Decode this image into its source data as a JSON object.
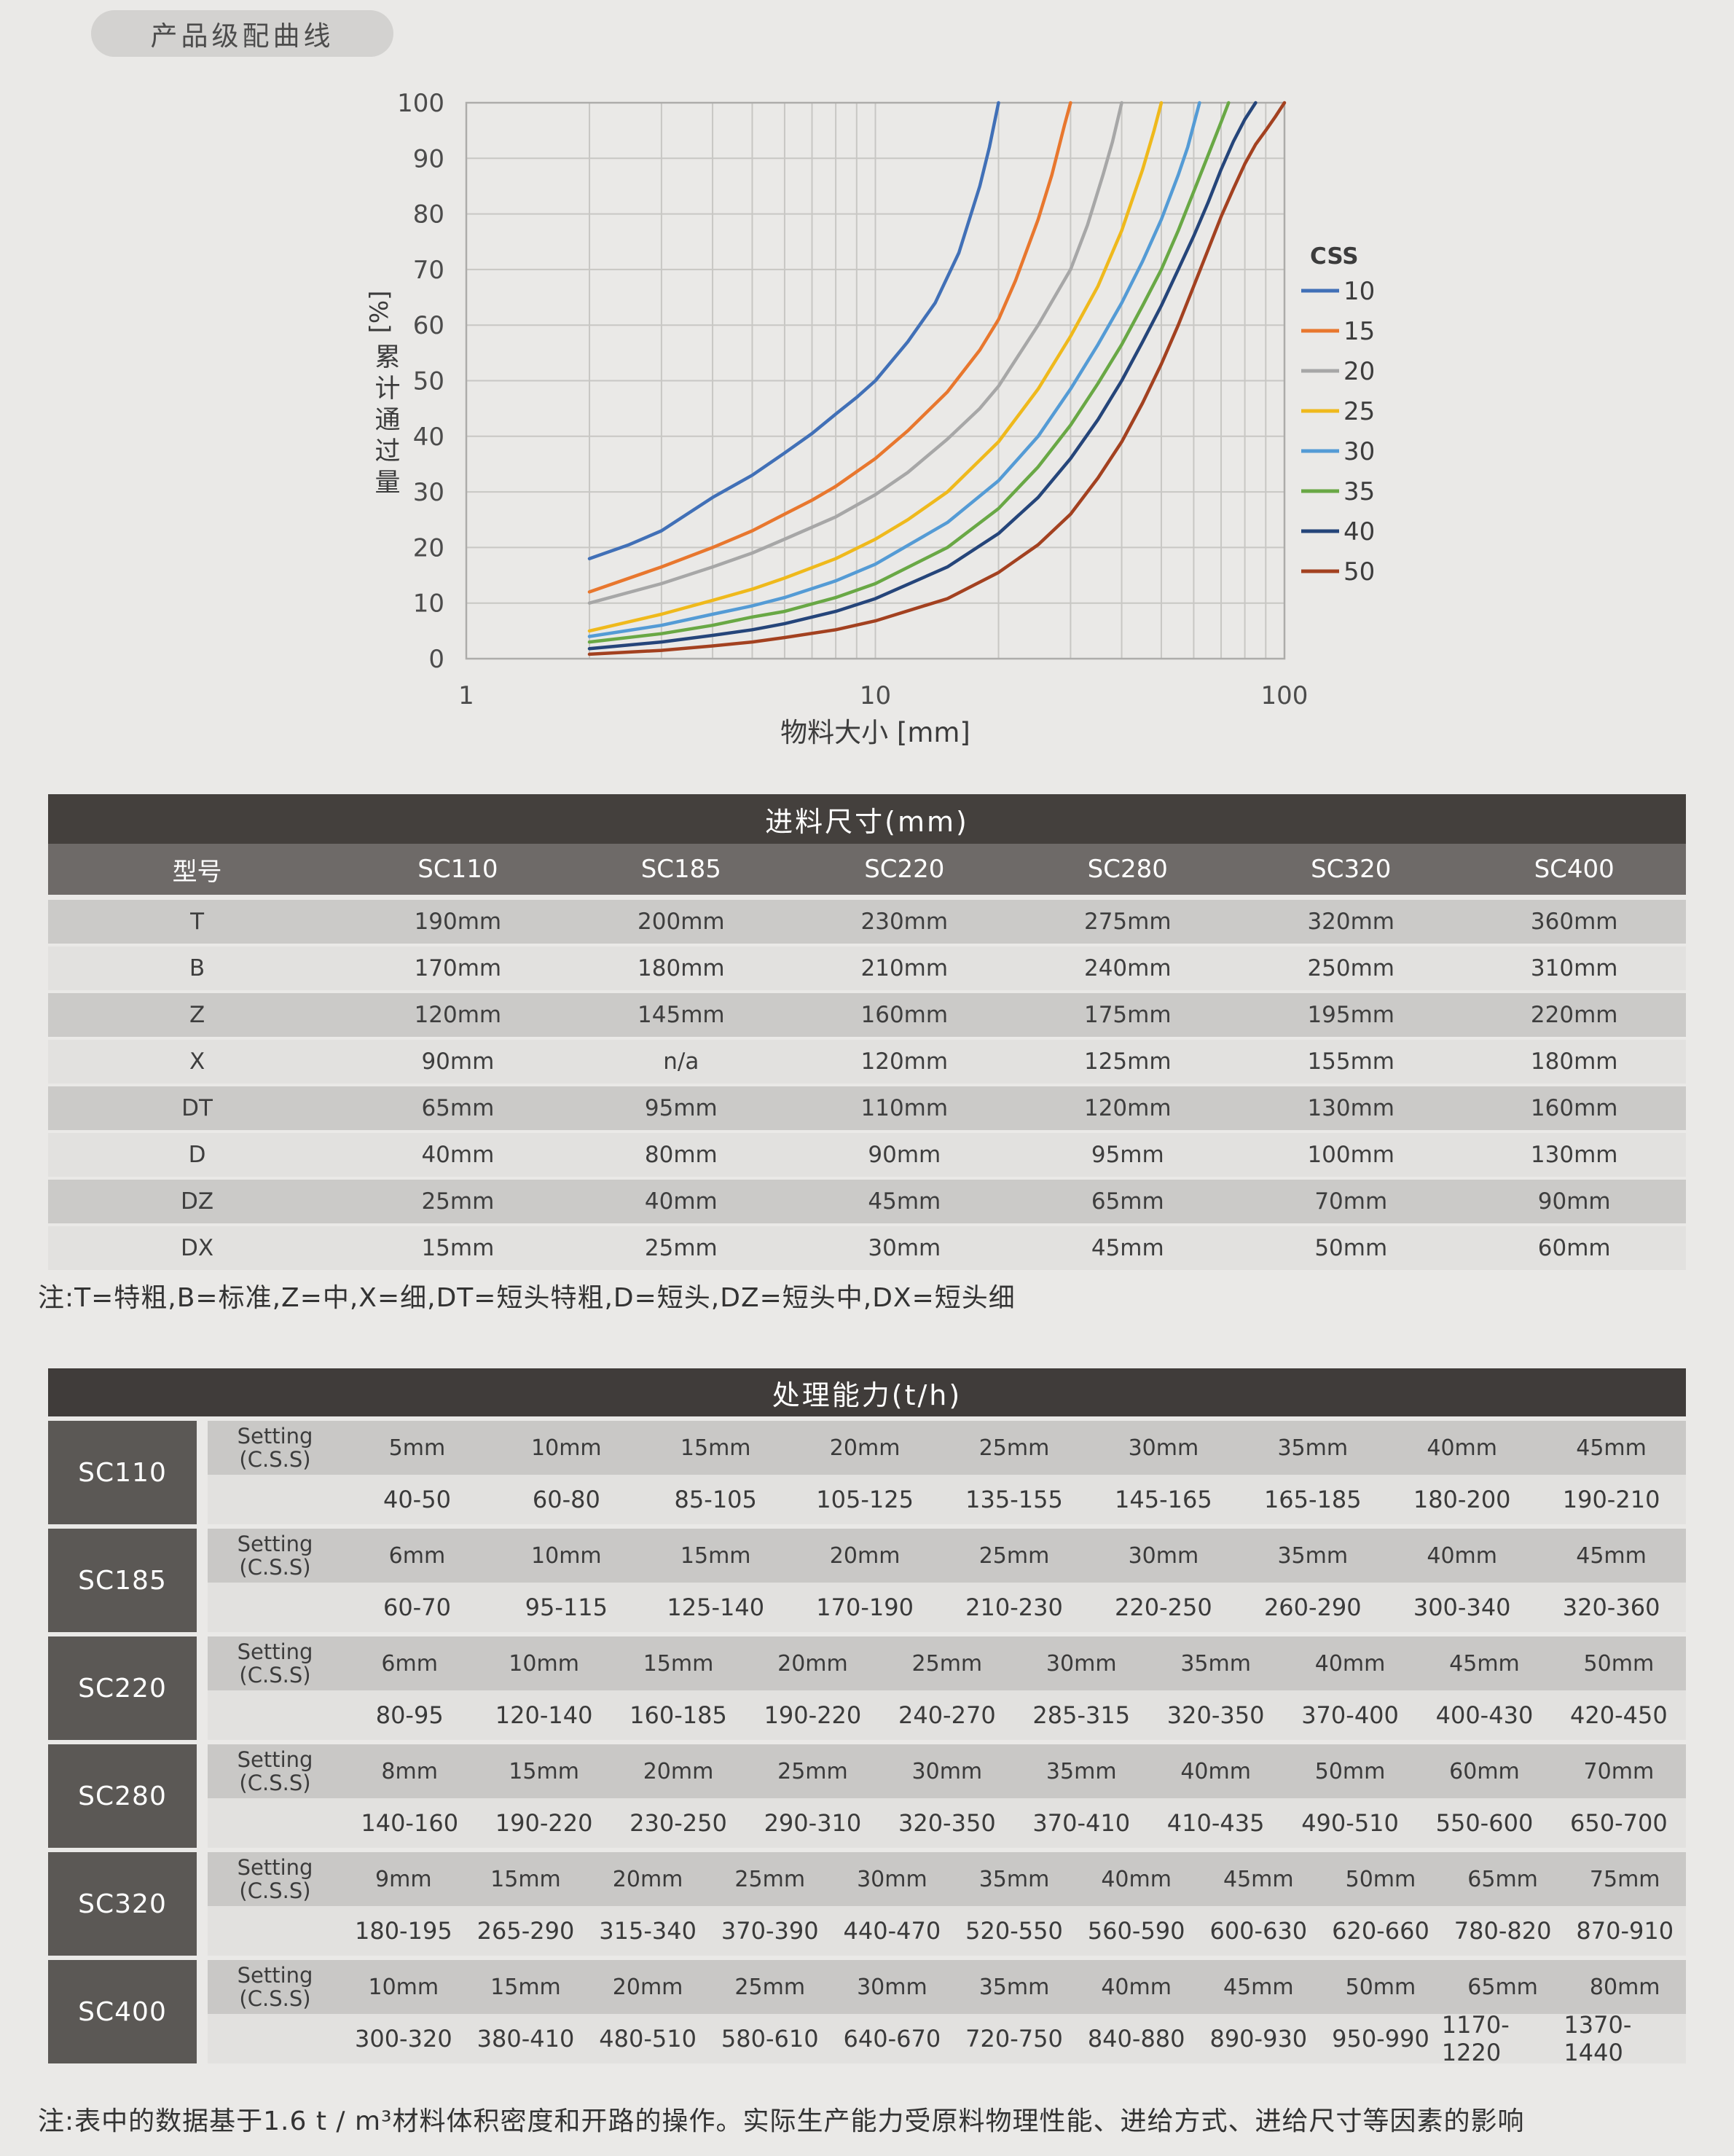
{
  "page": {
    "badge": "产品级配曲线",
    "note_feed": "注:T=特粗,B=标准,Z=中,X=细,DT=短头特粗,D=短头,DZ=短头中,DX=短头细",
    "note_capacity": "注:表中的数据基于1.6 t / m³材料体积密度和开路的操作。实际生产能力受原料物理性能、进给方式、进给尺寸等因素的影响"
  },
  "colors": {
    "page_bg": "#EAE9E7",
    "badge_bg": "#D3D2D0",
    "table_title_bg": "#44403D",
    "feed_header_bg": "#6E6A68",
    "row_dark": "#CBCAC8",
    "row_light": "#E2E1DF",
    "model_cell_bg": "#5B5855",
    "setting_row_bg": "#C9C8C6",
    "capacity_row_bg": "#E2E1DF",
    "grid": "#C8C7C4",
    "axis": "#ADACAA",
    "tick_text": "#4C4C4C",
    "text_dark": "#3C3C3C"
  },
  "chart_data": {
    "type": "line",
    "title": "",
    "xlabel": "物料大小 [mm]",
    "ylabel": "[%] 累计通过量",
    "ylabel_unit": "[%]",
    "ylabel_text": "累计通过量",
    "x_scale": "log",
    "xlim": [
      1,
      100
    ],
    "ylim": [
      0,
      100
    ],
    "x_ticks": [
      1,
      10,
      100
    ],
    "y_ticks": [
      0,
      10,
      20,
      30,
      40,
      50,
      60,
      70,
      80,
      90,
      100
    ],
    "grid": true,
    "legend_title": "CSS",
    "legend_position": "right",
    "series": [
      {
        "name": "10",
        "color": "#4170B7",
        "points": [
          [
            2,
            18
          ],
          [
            2.5,
            20.5
          ],
          [
            3,
            23
          ],
          [
            4,
            29
          ],
          [
            5,
            33
          ],
          [
            6,
            37
          ],
          [
            7,
            40.5
          ],
          [
            8,
            44
          ],
          [
            9,
            47
          ],
          [
            10,
            50
          ],
          [
            12,
            57
          ],
          [
            14,
            64
          ],
          [
            16,
            73
          ],
          [
            18,
            85
          ],
          [
            19,
            92
          ],
          [
            20,
            100
          ]
        ]
      },
      {
        "name": "15",
        "color": "#E8772E",
        "points": [
          [
            2,
            12
          ],
          [
            3,
            16.5
          ],
          [
            4,
            20
          ],
          [
            5,
            23
          ],
          [
            6,
            26
          ],
          [
            7,
            28.5
          ],
          [
            8,
            31
          ],
          [
            10,
            36
          ],
          [
            12,
            41
          ],
          [
            15,
            48
          ],
          [
            18,
            55.5
          ],
          [
            20,
            61
          ],
          [
            22,
            68
          ],
          [
            25,
            79
          ],
          [
            27,
            87
          ],
          [
            29,
            96
          ],
          [
            30,
            100
          ]
        ]
      },
      {
        "name": "20",
        "color": "#A7A7A7",
        "points": [
          [
            2,
            10
          ],
          [
            3,
            13.5
          ],
          [
            4,
            16.5
          ],
          [
            5,
            19
          ],
          [
            6,
            21.5
          ],
          [
            8,
            25.5
          ],
          [
            10,
            29.5
          ],
          [
            12,
            33.5
          ],
          [
            15,
            39.5
          ],
          [
            18,
            45
          ],
          [
            20,
            49
          ],
          [
            25,
            60
          ],
          [
            30,
            70
          ],
          [
            33,
            78
          ],
          [
            36,
            87
          ],
          [
            38,
            93
          ],
          [
            40,
            100
          ]
        ]
      },
      {
        "name": "25",
        "color": "#EFB91C",
        "points": [
          [
            2,
            5
          ],
          [
            3,
            8
          ],
          [
            4,
            10.5
          ],
          [
            5,
            12.5
          ],
          [
            6,
            14.5
          ],
          [
            8,
            18
          ],
          [
            10,
            21.5
          ],
          [
            12,
            25
          ],
          [
            15,
            30
          ],
          [
            20,
            39
          ],
          [
            25,
            48.5
          ],
          [
            30,
            58
          ],
          [
            35,
            67
          ],
          [
            40,
            77
          ],
          [
            45,
            88
          ],
          [
            48,
            95
          ],
          [
            50,
            100
          ]
        ]
      },
      {
        "name": "30",
        "color": "#549BD5",
        "points": [
          [
            2,
            4
          ],
          [
            3,
            6
          ],
          [
            4,
            8
          ],
          [
            5,
            9.5
          ],
          [
            6,
            11
          ],
          [
            8,
            14
          ],
          [
            10,
            17
          ],
          [
            15,
            24.5
          ],
          [
            20,
            32
          ],
          [
            25,
            40
          ],
          [
            30,
            48.5
          ],
          [
            35,
            56.5
          ],
          [
            40,
            64
          ],
          [
            45,
            71.5
          ],
          [
            50,
            79
          ],
          [
            55,
            87
          ],
          [
            58,
            92
          ],
          [
            62,
            100
          ]
        ]
      },
      {
        "name": "35",
        "color": "#69A845",
        "points": [
          [
            2,
            3
          ],
          [
            3,
            4.5
          ],
          [
            4,
            6
          ],
          [
            5,
            7.5
          ],
          [
            6,
            8.5
          ],
          [
            8,
            11
          ],
          [
            10,
            13.5
          ],
          [
            15,
            20
          ],
          [
            20,
            27
          ],
          [
            25,
            34.5
          ],
          [
            30,
            42
          ],
          [
            35,
            49.5
          ],
          [
            40,
            56.5
          ],
          [
            45,
            63.5
          ],
          [
            50,
            70
          ],
          [
            55,
            77
          ],
          [
            60,
            84
          ],
          [
            65,
            90.5
          ],
          [
            70,
            96.5
          ],
          [
            73,
            100
          ]
        ]
      },
      {
        "name": "40",
        "color": "#25457A",
        "points": [
          [
            2,
            1.8
          ],
          [
            3,
            3
          ],
          [
            4,
            4.2
          ],
          [
            5,
            5.2
          ],
          [
            6,
            6.3
          ],
          [
            8,
            8.5
          ],
          [
            10,
            10.8
          ],
          [
            15,
            16.5
          ],
          [
            20,
            22.5
          ],
          [
            25,
            29
          ],
          [
            30,
            36
          ],
          [
            35,
            43
          ],
          [
            40,
            50
          ],
          [
            45,
            57
          ],
          [
            50,
            63.5
          ],
          [
            55,
            70
          ],
          [
            60,
            76
          ],
          [
            65,
            82
          ],
          [
            70,
            88
          ],
          [
            75,
            93
          ],
          [
            80,
            97
          ],
          [
            85,
            100
          ]
        ]
      },
      {
        "name": "50",
        "color": "#A34120",
        "points": [
          [
            2,
            0.8
          ],
          [
            3,
            1.5
          ],
          [
            4,
            2.3
          ],
          [
            5,
            3
          ],
          [
            6,
            3.8
          ],
          [
            8,
            5.2
          ],
          [
            10,
            6.8
          ],
          [
            15,
            10.8
          ],
          [
            20,
            15.5
          ],
          [
            25,
            20.5
          ],
          [
            30,
            26
          ],
          [
            35,
            32.5
          ],
          [
            40,
            39
          ],
          [
            45,
            46
          ],
          [
            50,
            53
          ],
          [
            55,
            60
          ],
          [
            60,
            67
          ],
          [
            65,
            73.5
          ],
          [
            70,
            79.5
          ],
          [
            75,
            84.5
          ],
          [
            80,
            89
          ],
          [
            85,
            92.5
          ],
          [
            90,
            95
          ],
          [
            95,
            97.5
          ],
          [
            100,
            100
          ]
        ]
      }
    ]
  },
  "feed_table": {
    "title": "进料尺寸(mm)",
    "columns": [
      "型号",
      "SC110",
      "SC185",
      "SC220",
      "SC280",
      "SC320",
      "SC400"
    ],
    "rows": [
      {
        "label": "T",
        "values": [
          "190mm",
          "200mm",
          "230mm",
          "275mm",
          "320mm",
          "360mm"
        ]
      },
      {
        "label": "B",
        "values": [
          "170mm",
          "180mm",
          "210mm",
          "240mm",
          "250mm",
          "310mm"
        ]
      },
      {
        "label": "Z",
        "values": [
          "120mm",
          "145mm",
          "160mm",
          "175mm",
          "195mm",
          "220mm"
        ]
      },
      {
        "label": "X",
        "values": [
          "90mm",
          "n/a",
          "120mm",
          "125mm",
          "155mm",
          "180mm"
        ]
      },
      {
        "label": "DT",
        "values": [
          "65mm",
          "95mm",
          "110mm",
          "120mm",
          "130mm",
          "160mm"
        ]
      },
      {
        "label": "D",
        "values": [
          "40mm",
          "80mm",
          "90mm",
          "95mm",
          "100mm",
          "130mm"
        ]
      },
      {
        "label": "DZ",
        "values": [
          "25mm",
          "40mm",
          "45mm",
          "65mm",
          "70mm",
          "90mm"
        ]
      },
      {
        "label": "DX",
        "values": [
          "15mm",
          "25mm",
          "30mm",
          "45mm",
          "50mm",
          "60mm"
        ]
      }
    ]
  },
  "capacity_table": {
    "title": "处理能力(t/h)",
    "setting_label_line1": "Setting",
    "setting_label_line2": "(C.S.S)",
    "blocks": [
      {
        "model": "SC110",
        "settings": [
          "5mm",
          "10mm",
          "15mm",
          "20mm",
          "25mm",
          "30mm",
          "35mm",
          "40mm",
          "45mm"
        ],
        "capacities": [
          "40-50",
          "60-80",
          "85-105",
          "105-125",
          "135-155",
          "145-165",
          "165-185",
          "180-200",
          "190-210"
        ]
      },
      {
        "model": "SC185",
        "settings": [
          "6mm",
          "10mm",
          "15mm",
          "20mm",
          "25mm",
          "30mm",
          "35mm",
          "40mm",
          "45mm"
        ],
        "capacities": [
          "60-70",
          "95-115",
          "125-140",
          "170-190",
          "210-230",
          "220-250",
          "260-290",
          "300-340",
          "320-360"
        ]
      },
      {
        "model": "SC220",
        "settings": [
          "6mm",
          "10mm",
          "15mm",
          "20mm",
          "25mm",
          "30mm",
          "35mm",
          "40mm",
          "45mm",
          "50mm"
        ],
        "capacities": [
          "80-95",
          "120-140",
          "160-185",
          "190-220",
          "240-270",
          "285-315",
          "320-350",
          "370-400",
          "400-430",
          "420-450"
        ]
      },
      {
        "model": "SC280",
        "settings": [
          "8mm",
          "15mm",
          "20mm",
          "25mm",
          "30mm",
          "35mm",
          "40mm",
          "50mm",
          "60mm",
          "70mm"
        ],
        "capacities": [
          "140-160",
          "190-220",
          "230-250",
          "290-310",
          "320-350",
          "370-410",
          "410-435",
          "490-510",
          "550-600",
          "650-700"
        ]
      },
      {
        "model": "SC320",
        "settings": [
          "9mm",
          "15mm",
          "20mm",
          "25mm",
          "30mm",
          "35mm",
          "40mm",
          "45mm",
          "50mm",
          "65mm",
          "75mm"
        ],
        "capacities": [
          "180-195",
          "265-290",
          "315-340",
          "370-390",
          "440-470",
          "520-550",
          "560-590",
          "600-630",
          "620-660",
          "780-820",
          "870-910"
        ]
      },
      {
        "model": "SC400",
        "settings": [
          "10mm",
          "15mm",
          "20mm",
          "25mm",
          "30mm",
          "35mm",
          "40mm",
          "45mm",
          "50mm",
          "65mm",
          "80mm"
        ],
        "capacities": [
          "300-320",
          "380-410",
          "480-510",
          "580-610",
          "640-670",
          "720-750",
          "840-880",
          "890-930",
          "950-990",
          "1170-1220",
          "1370-1440"
        ]
      }
    ]
  }
}
